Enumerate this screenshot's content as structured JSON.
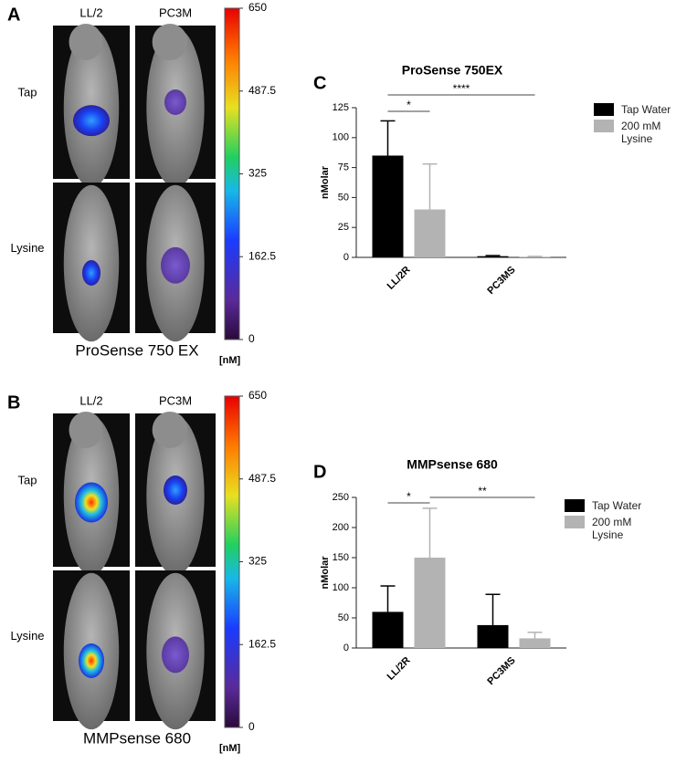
{
  "panels": [
    {
      "label": "A",
      "columns": [
        "LL/2",
        "PC3M"
      ],
      "rows": [
        "Tap",
        "Lysine"
      ],
      "caption": "ProSense 750 EX",
      "colorbar": {
        "ticks": [
          650,
          487.5,
          325,
          162.5,
          0
        ],
        "unit": "[nM]"
      }
    },
    {
      "label": "B",
      "columns": [
        "LL/2",
        "PC3M"
      ],
      "rows": [
        "Tap",
        "Lysine"
      ],
      "caption": "MMPsense 680",
      "colorbar": {
        "ticks": [
          650,
          487.5,
          325,
          162.5,
          0
        ],
        "unit": "[nM]"
      }
    }
  ],
  "chart_data": [
    {
      "type": "bar",
      "label": "C",
      "title": "ProSense 750EX",
      "y_label": "nMolar",
      "categories": [
        "LL/2R",
        "PC3MS"
      ],
      "series": [
        {
          "name": "Tap Water",
          "color": "#000000",
          "values": [
            85,
            1
          ],
          "errors": [
            29,
            0.5
          ]
        },
        {
          "name": "200 mM Lysine",
          "color": "#b3b3b3",
          "values": [
            40,
            0.5
          ],
          "errors": [
            38,
            0.3
          ]
        }
      ],
      "ylim": [
        0,
        125
      ],
      "yticks": [
        0,
        25,
        50,
        75,
        100,
        125
      ],
      "significance": [
        "*",
        "****"
      ]
    },
    {
      "type": "bar",
      "label": "D",
      "title": "MMPsense 680",
      "y_label": "nMolar",
      "categories": [
        "LL/2R",
        "PC3MS"
      ],
      "series": [
        {
          "name": "Tap Water",
          "color": "#000000",
          "values": [
            60,
            38
          ],
          "errors": [
            43,
            51
          ]
        },
        {
          "name": "200 mM Lysine",
          "color": "#b3b3b3",
          "values": [
            150,
            16
          ],
          "errors": [
            82,
            10
          ]
        }
      ],
      "ylim": [
        0,
        250
      ],
      "yticks": [
        0,
        50,
        100,
        150,
        200,
        250
      ],
      "significance": [
        "*",
        "**"
      ]
    }
  ]
}
